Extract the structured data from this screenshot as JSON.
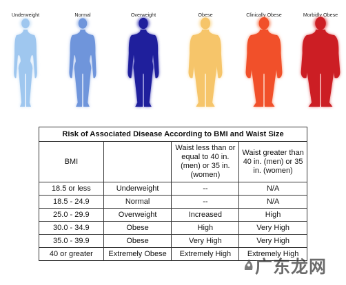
{
  "figures": [
    {
      "label": "Underweight",
      "color": "#9fc7ef",
      "glow": "#c9e0f7",
      "build": "thin"
    },
    {
      "label": "Normal",
      "color": "#6f95db",
      "glow": "#a9c0ec",
      "build": "normal"
    },
    {
      "label": "Overweight",
      "color": "#1f1f9c",
      "glow": "#5656c0",
      "build": "over"
    },
    {
      "label": "Obese",
      "color": "#f6c56a",
      "glow": "#fbdea3",
      "build": "obese"
    },
    {
      "label": "Clinically Obese",
      "color": "#f1502a",
      "glow": "#f7906e",
      "build": "clinical"
    },
    {
      "label": "Morbidly Obese",
      "color": "#cc1e24",
      "glow": "#e46a6c",
      "build": "morbid"
    }
  ],
  "table": {
    "title": "Risk of Associated Disease According to BMI and Waist Size",
    "headers": {
      "bmi": "BMI",
      "category": "",
      "waist_low": "Waist less than or equal to 40 in. (men) or 35 in. (women)",
      "waist_high": "Waist greater than 40 in. (men) or 35 in. (women)"
    },
    "rows": [
      {
        "bmi": "18.5 or less",
        "category": "Underweight",
        "low": "--",
        "high": "N/A"
      },
      {
        "bmi": "18.5 - 24.9",
        "category": "Normal",
        "low": "--",
        "high": "N/A"
      },
      {
        "bmi": "25.0 - 29.9",
        "category": "Overweight",
        "low": "Increased",
        "high": "High"
      },
      {
        "bmi": "30.0 - 34.9",
        "category": "Obese",
        "low": "High",
        "high": "Very High"
      },
      {
        "bmi": "35.0 - 39.9",
        "category": "Obese",
        "low": "Very High",
        "high": "Very High"
      },
      {
        "bmi": "40 or greater",
        "category": "Extremely Obese",
        "low": "Extremely High",
        "high": "Extremely High"
      }
    ]
  },
  "watermark": {
    "text": "广东龙网"
  }
}
